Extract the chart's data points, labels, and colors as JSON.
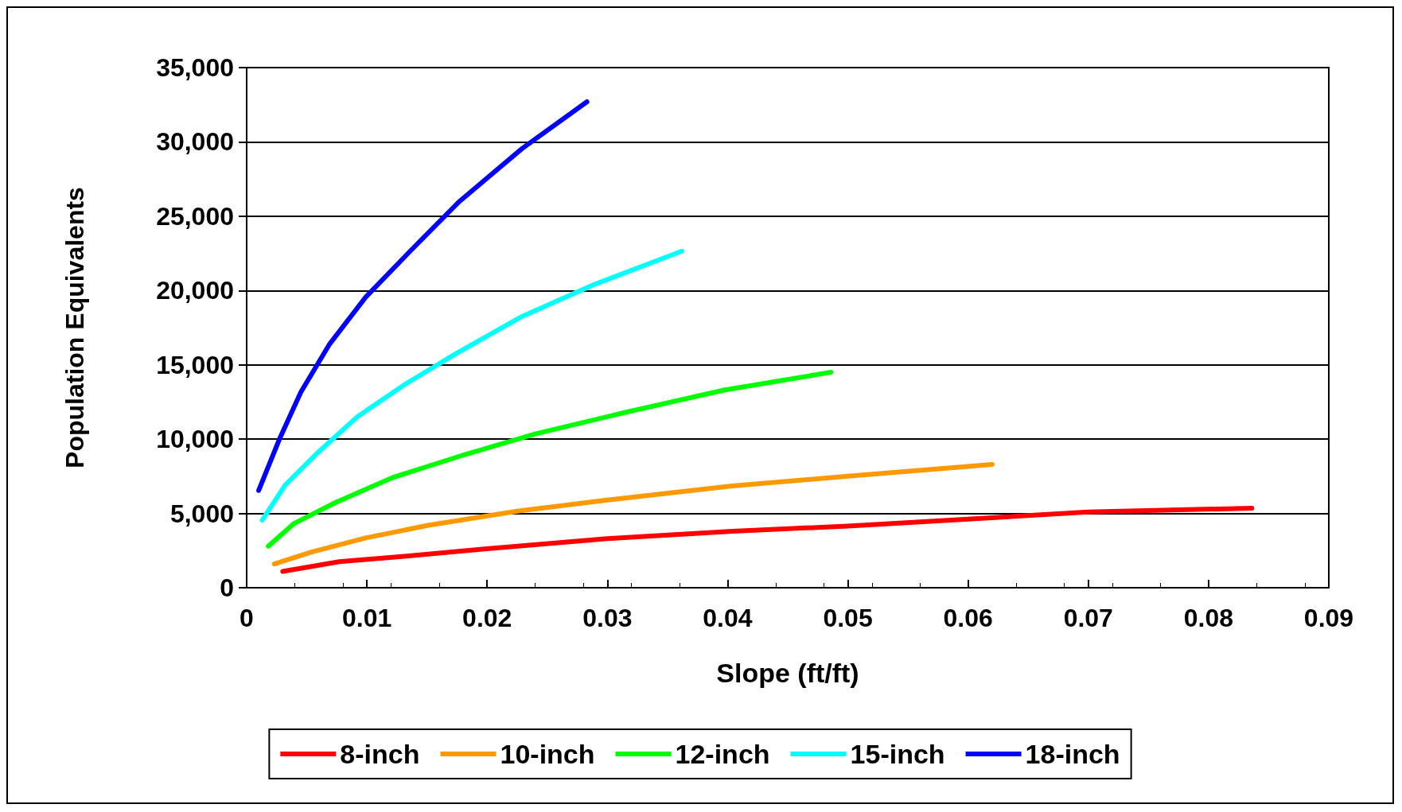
{
  "chart_data": {
    "type": "line",
    "xlabel": "Slope (ft/ft)",
    "ylabel": "Population Equivalents",
    "xlim": [
      0,
      0.09
    ],
    "xticks": [
      0,
      0.01,
      0.02,
      0.03,
      0.04,
      0.05,
      0.06,
      0.07,
      0.08,
      0.09
    ],
    "ylim": [
      0,
      35000
    ],
    "yticks": [
      {
        "value": 0,
        "label": "0"
      },
      {
        "value": 5000,
        "label": "5,000"
      },
      {
        "value": 10000,
        "label": "10,000"
      },
      {
        "value": 15000,
        "label": "15,000"
      },
      {
        "value": 20000,
        "label": "20,000"
      },
      {
        "value": 25000,
        "label": "25,000"
      },
      {
        "value": 30000,
        "label": "30,000"
      },
      {
        "value": 35000,
        "label": "35,000"
      }
    ],
    "grid": "y",
    "legend": "bottom",
    "marker": "none",
    "line_style": "solid",
    "series": [
      {
        "name": "8-inch",
        "color": "#ff0000",
        "x": [
          0.003,
          0.0077,
          0.0129,
          0.0196,
          0.03,
          0.0404,
          0.05,
          0.0597,
          0.07,
          0.0836
        ],
        "values": [
          1100,
          1750,
          2100,
          2600,
          3300,
          3800,
          4150,
          4600,
          5100,
          5350
        ]
      },
      {
        "name": "10-inch",
        "color": "#ff9900",
        "x": [
          0.0023,
          0.0054,
          0.0099,
          0.0151,
          0.0225,
          0.03,
          0.0404,
          0.05,
          0.062
        ],
        "values": [
          1600,
          2400,
          3350,
          4200,
          5150,
          5900,
          6850,
          7500,
          8300
        ]
      },
      {
        "name": "12-inch",
        "color": "#00ff00",
        "x": [
          0.0018,
          0.0039,
          0.0073,
          0.0121,
          0.0181,
          0.024,
          0.0315,
          0.0397,
          0.0486
        ],
        "values": [
          2800,
          4300,
          5700,
          7400,
          8950,
          10350,
          11800,
          13300,
          14500
        ]
      },
      {
        "name": "15-inch",
        "color": "#00ffff",
        "x": [
          0.0013,
          0.0032,
          0.0058,
          0.0092,
          0.0132,
          0.0173,
          0.0229,
          0.0289,
          0.0362
        ],
        "values": [
          4550,
          6900,
          9000,
          11500,
          13700,
          15700,
          18250,
          20400,
          22650
        ]
      },
      {
        "name": "18-inch",
        "color": "#0000ff",
        "x": [
          0.001,
          0.0027,
          0.0045,
          0.0069,
          0.0099,
          0.0136,
          0.0177,
          0.0229,
          0.0283
        ],
        "values": [
          6550,
          9950,
          13150,
          16400,
          19550,
          22650,
          26000,
          29550,
          32700
        ]
      }
    ]
  }
}
